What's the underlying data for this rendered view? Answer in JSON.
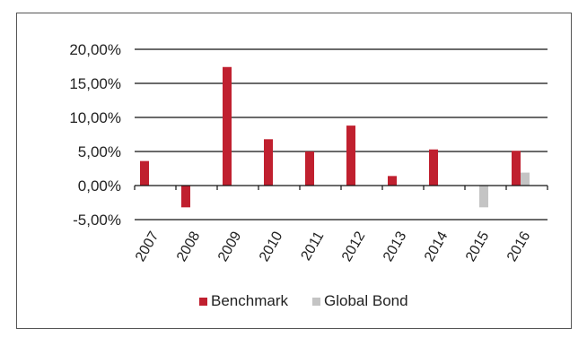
{
  "chart_data": {
    "type": "bar",
    "categories": [
      "2007",
      "2008",
      "2009",
      "2010",
      "2011",
      "2012",
      "2013",
      "2014",
      "2015",
      "2016"
    ],
    "series": [
      {
        "name": "Benchmark",
        "color": "#c0202f",
        "values": [
          3.6,
          -3.2,
          17.4,
          6.8,
          5.0,
          8.8,
          1.4,
          5.3,
          null,
          5.1
        ]
      },
      {
        "name": "Global Bond",
        "color": "#c4c4c4",
        "values": [
          null,
          null,
          null,
          null,
          null,
          null,
          null,
          null,
          -3.2,
          1.9
        ]
      }
    ],
    "yticks": [
      "20,00%",
      "15,00%",
      "10,00%",
      "5,00%",
      "0,00%",
      "-5,00%"
    ],
    "ytick_values": [
      20,
      15,
      10,
      5,
      0,
      -5
    ],
    "ylim": [
      -5,
      20
    ],
    "grid": true,
    "legend_position": "bottom",
    "title": "",
    "xlabel": "",
    "ylabel": ""
  }
}
